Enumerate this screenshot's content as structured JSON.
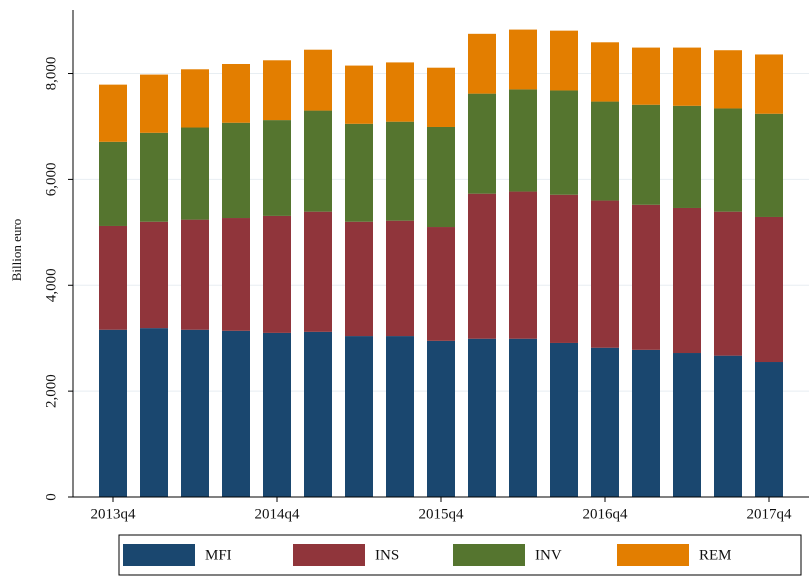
{
  "chart_data": {
    "type": "stacked_bar",
    "y_label": "Billion euro",
    "categories": [
      "2013q4",
      null,
      null,
      null,
      "2014q4",
      null,
      null,
      null,
      "2015q4",
      null,
      null,
      null,
      "2016q4",
      null,
      null,
      null,
      "2017q4"
    ],
    "series": [
      {
        "name": "MFI",
        "color": "#1a476f",
        "values": [
          3160,
          3190,
          3160,
          3140,
          3100,
          3120,
          3040,
          3040,
          2950,
          2990,
          2990,
          2910,
          2820,
          2780,
          2720,
          2670,
          2550
        ]
      },
      {
        "name": "INS",
        "color": "#90353b",
        "values": [
          1960,
          2010,
          2080,
          2130,
          2210,
          2270,
          2160,
          2180,
          2150,
          2740,
          2780,
          2800,
          2780,
          2740,
          2740,
          2720,
          2740
        ]
      },
      {
        "name": "INV",
        "color": "#55752f",
        "values": [
          1590,
          1680,
          1740,
          1800,
          1810,
          1910,
          1850,
          1870,
          1890,
          1890,
          1930,
          1970,
          1870,
          1890,
          1930,
          1950,
          1950
        ]
      },
      {
        "name": "REM",
        "color": "#e37e00",
        "values": [
          1080,
          1100,
          1100,
          1110,
          1130,
          1150,
          1100,
          1120,
          1120,
          1130,
          1130,
          1130,
          1120,
          1080,
          1100,
          1100,
          1120
        ]
      }
    ],
    "ylim": [
      0,
      9200
    ],
    "yticks": [
      0,
      {
        "value": 2000,
        "label": "2,000"
      },
      {
        "value": 4000,
        "label": "4,000"
      },
      {
        "value": 6000,
        "label": "6,000"
      },
      {
        "value": 8000,
        "label": "8,000"
      }
    ],
    "grid": true
  }
}
